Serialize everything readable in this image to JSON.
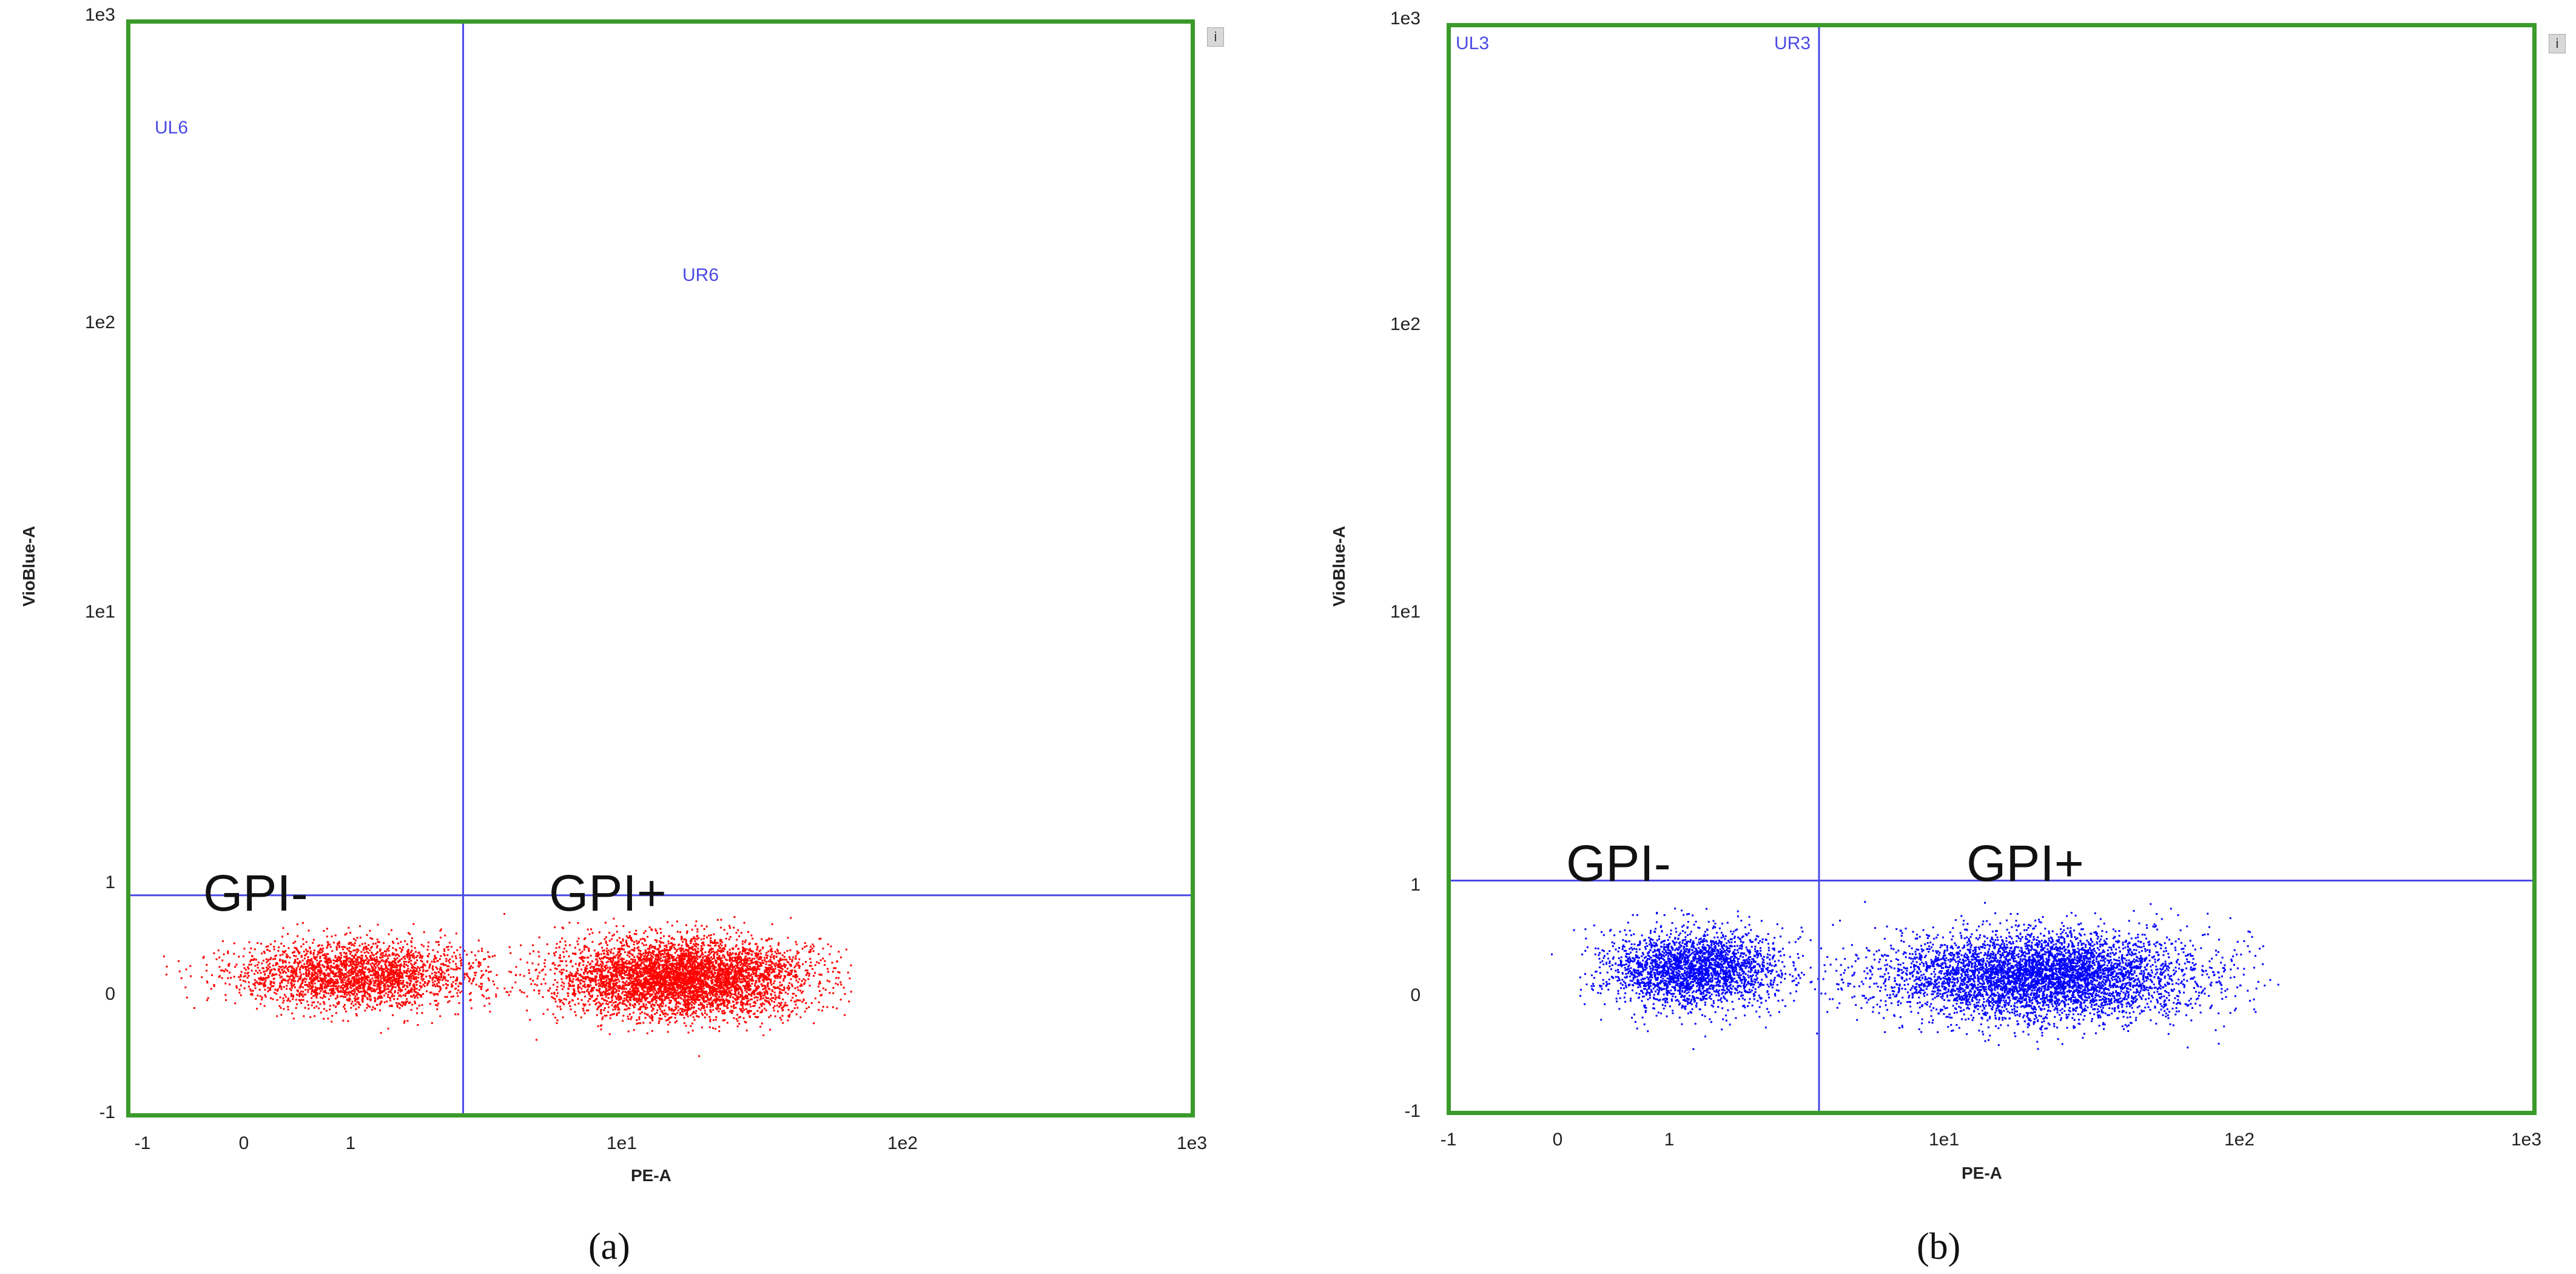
{
  "chart_data": [
    {
      "type": "scatter",
      "panel_caption": "(a)",
      "xlabel": "PE-A",
      "ylabel": "VioBlue-A",
      "x_ticks": [
        "-1",
        "0",
        "1",
        "1e1",
        "1e2",
        "1e3"
      ],
      "y_ticks": [
        "1e3",
        "1e2",
        "1e1",
        "1",
        "0",
        "-1"
      ],
      "x_scale": "biexponential",
      "y_scale": "biexponential",
      "xlim": [
        -1,
        1000
      ],
      "ylim": [
        -1,
        1000
      ],
      "quadrant_gate": {
        "x": 1.8,
        "y": 0.6
      },
      "quadrant_labels": [
        "UL6",
        "UR6"
      ],
      "population_labels": [
        "GPI-",
        "GPI+"
      ],
      "point_color": "#ff0000",
      "frame_color": "#3a9a2a",
      "gate_color": "#4a4ae6",
      "series": [
        {
          "color": "#ff0000",
          "clusters": [
            {
              "x_center": 0.7,
              "x_min": -0.9,
              "x_max": 1.8,
              "y_center": 0.02,
              "y_spread": 0.12
            },
            {
              "x_center": 12,
              "x_min": 2.5,
              "x_max": 40,
              "y_center": 0.0,
              "y_spread": 0.14
            }
          ]
        }
      ]
    },
    {
      "type": "scatter",
      "panel_caption": "(b)",
      "xlabel": "PE-A",
      "ylabel": "VioBlue-A",
      "x_ticks": [
        "-1",
        "0",
        "1",
        "1e1",
        "1e2",
        "1e3"
      ],
      "y_ticks": [
        "1e3",
        "1e2",
        "1e1",
        "1",
        "0",
        "-1"
      ],
      "x_scale": "biexponential",
      "y_scale": "biexponential",
      "xlim": [
        -1,
        1000
      ],
      "ylim": [
        -1,
        1000
      ],
      "quadrant_gate": {
        "x": 2.3,
        "y": 0.7
      },
      "quadrant_labels": [
        "UL3",
        "UR3"
      ],
      "population_labels": [
        "GPI-",
        "GPI+"
      ],
      "point_color": "#0000ff",
      "frame_color": "#3a9a2a",
      "gate_color": "#4a4ae6",
      "series": [
        {
          "color": "#0000ff",
          "clusters": [
            {
              "x_center": 0.8,
              "x_min": 0.0,
              "x_max": 2.2,
              "y_center": 0.05,
              "y_spread": 0.14
            },
            {
              "x_center": 15,
              "x_min": 2.4,
              "x_max": 80,
              "y_center": 0.0,
              "y_spread": 0.16
            }
          ]
        }
      ]
    }
  ]
}
